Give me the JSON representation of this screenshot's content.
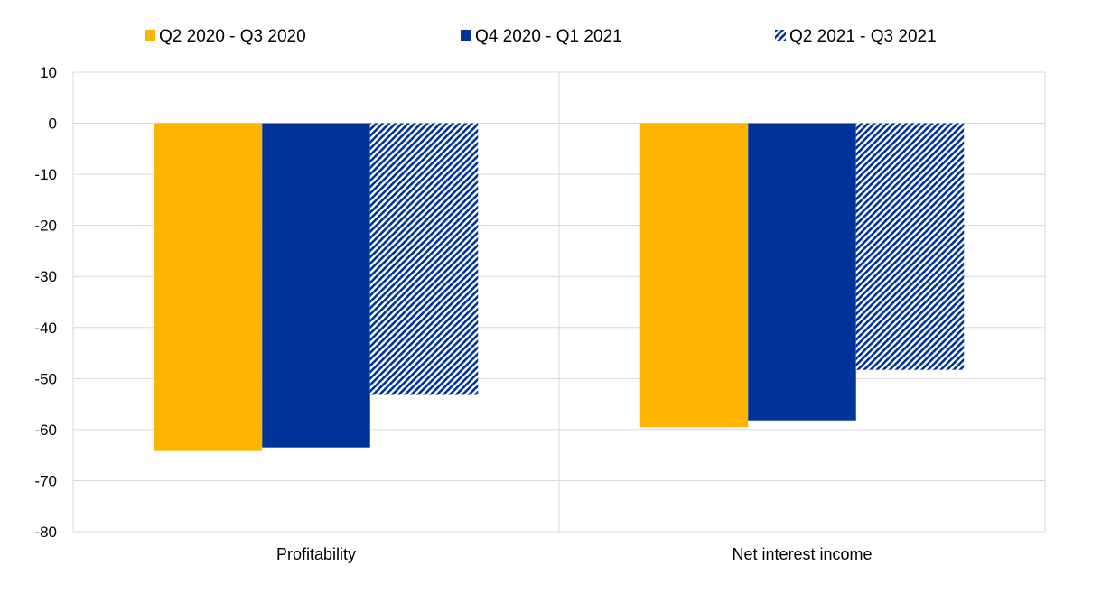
{
  "chart_data": {
    "type": "bar",
    "title": "",
    "xlabel": "",
    "ylabel": "",
    "categories": [
      "Profitability",
      "Net interest income"
    ],
    "series": [
      {
        "name": "Q2 2020 - Q3 2020",
        "values": [
          -64.2,
          -59.5
        ],
        "color": "#FFB400",
        "pattern": "solid"
      },
      {
        "name": "Q4 2020 - Q1 2021",
        "values": [
          -63.5,
          -58.2
        ],
        "color": "#003399",
        "pattern": "solid"
      },
      {
        "name": "Q2 2021 - Q3 2021",
        "values": [
          -53.2,
          -48.3
        ],
        "color": "#003399",
        "pattern": "diagonal-hatch"
      }
    ],
    "ylim": [
      -80,
      10
    ],
    "yticks": [
      10,
      0,
      -10,
      -20,
      -30,
      -40,
      -50,
      -60,
      -70,
      -80
    ],
    "grid": true,
    "legend_position": "top"
  }
}
